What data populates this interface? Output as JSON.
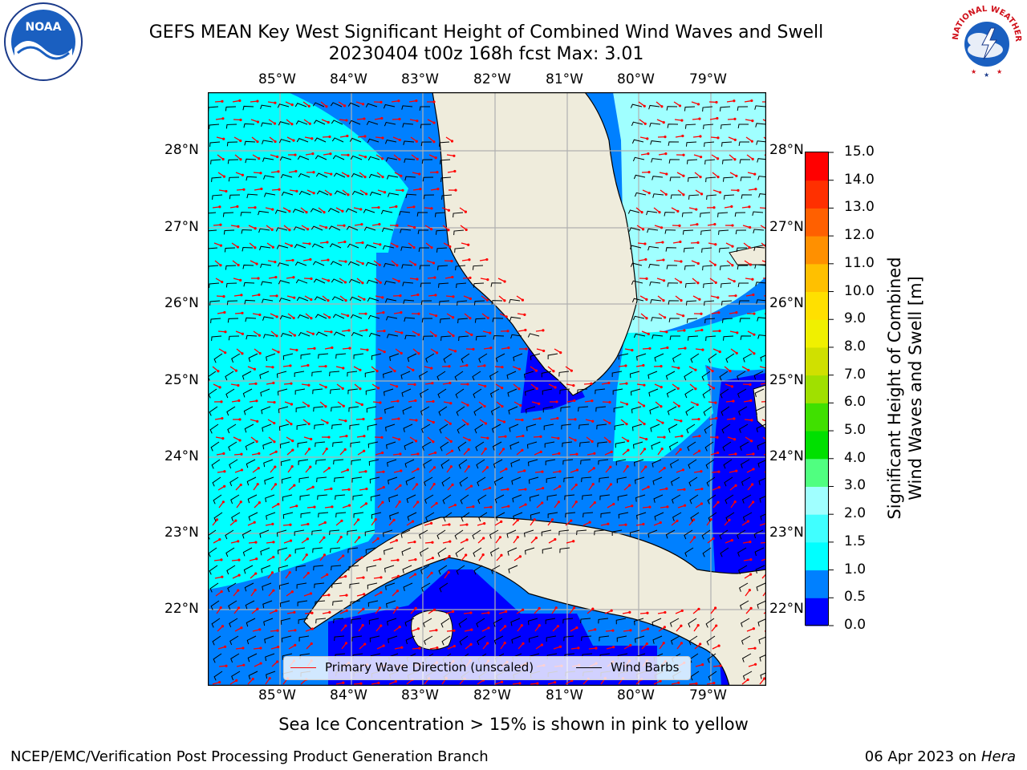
{
  "title": {
    "line1": "GEFS MEAN Key West Significant Height of Combined Wind Waves and Swell",
    "line2": "20230404 t00z 168h fcst   Max: 3.01"
  },
  "logos": {
    "left": {
      "name": "noaa-logo",
      "text": "NOAA"
    },
    "right": {
      "name": "nws-logo",
      "text": "NATIONAL WEATHER SERVICE"
    }
  },
  "map": {
    "lon_labels": [
      "85°W",
      "84°W",
      "83°W",
      "82°W",
      "81°W",
      "80°W",
      "79°W"
    ],
    "lat_labels": [
      "28°N",
      "27°N",
      "26°N",
      "25°N",
      "24°N",
      "23°N",
      "22°N"
    ],
    "colors": {
      "land": "#efecdc",
      "coast": "#000000",
      "grid": "#b0b0b0",
      "wave_arrow": "#ff0000",
      "wind_barb": "#000000"
    }
  },
  "legend": {
    "items": [
      {
        "label": "Primary Wave Direction (unscaled)",
        "color": "#ff0000"
      },
      {
        "label": "Wind Barbs",
        "color": "#000000"
      }
    ]
  },
  "colorbar": {
    "label_line1": "Significant Height of Combined",
    "label_line2": "Wind Waves and Swell [m]",
    "ticks": [
      "0.0",
      "0.5",
      "1.0",
      "1.5",
      "2.0",
      "3.0",
      "4.0",
      "5.0",
      "6.0",
      "7.0",
      "8.0",
      "9.0",
      "10.0",
      "11.0",
      "12.0",
      "13.0",
      "14.0",
      "15.0"
    ],
    "colors": [
      "#0000ff",
      "#0080ff",
      "#00ffff",
      "#40ffff",
      "#a0ffff",
      "#50ff80",
      "#00e000",
      "#40e000",
      "#a0e000",
      "#d0e000",
      "#f0f000",
      "#ffe000",
      "#ffc000",
      "#ff9000",
      "#ff6000",
      "#ff3000",
      "#ff0000"
    ]
  },
  "ice_note": "Sea Ice Concentration > 15% is shown in pink to yellow",
  "footer": {
    "left": "NCEP/EMC/Verification Post Processing Product Generation Branch",
    "right_date": "06 Apr 2023 on ",
    "right_host": "Hera"
  }
}
